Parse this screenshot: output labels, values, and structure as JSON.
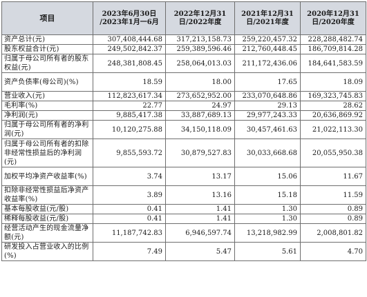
{
  "table": {
    "headers": [
      {
        "line1": "项目",
        "line2": ""
      },
      {
        "line1": "2023年6月30日",
        "line2": "/2023年1月一6月"
      },
      {
        "line1": "2022年12月31",
        "line2": "日/2022年度"
      },
      {
        "line1": "2021年12月31",
        "line2": "日/2021年度"
      },
      {
        "line1": "2020年12月31",
        "line2": "日/2020年度"
      }
    ],
    "rows": [
      {
        "label": "资产总计(元)",
        "values": [
          "307,408,444.68",
          "317,213,158.73",
          "259,220,457.32",
          "228,288,482.74"
        ]
      },
      {
        "label": "股东权益合计(元)",
        "values": [
          "249,502,842.37",
          "259,389,596.46",
          "212,760,448.45",
          "186,709,814.28"
        ]
      },
      {
        "label": "归属于母公司所有者的股东权益(元)",
        "values": [
          "248,381,808.45",
          "258,064,013.03",
          "211,172,436.06",
          "184,641,583.59"
        ]
      },
      {
        "label": "资产负债率(母公司)(%)",
        "values": [
          "18.59",
          "18.00",
          "17.65",
          "18.09"
        ]
      },
      {
        "label": "营业收入(元)",
        "values": [
          "112,823,617.34",
          "273,652,952.00",
          "233,070,648.86",
          "169,323,745.83"
        ]
      },
      {
        "label": "毛利率(%)",
        "values": [
          "22.77",
          "24.97",
          "29.13",
          "28.62"
        ]
      },
      {
        "label": "净利润(元)",
        "values": [
          "9,885,417.38",
          "33,887,689.13",
          "29,977,243.33",
          "20,636,869.92"
        ]
      },
      {
        "label": "归属于母公司所有者的净利润(元)",
        "values": [
          "10,120,275.88",
          "34,150,118.09",
          "30,457,461.63",
          "21,022,113.30"
        ]
      },
      {
        "label": "归属于母公司所有者的扣除非经常性损益后的净利润(元)",
        "values": [
          "9,855,593.72",
          "30,879,527.83",
          "30,033,668.68",
          "20,055,950.38"
        ]
      },
      {
        "label": "加权平均净资产收益率(%)",
        "values": [
          "3.74",
          "13.17",
          "15.06",
          "11.67"
        ]
      },
      {
        "label": "扣除非经常性损益后净资产收益率(%)",
        "values": [
          "3.89",
          "13.16",
          "15.18",
          "11.59"
        ]
      },
      {
        "label": "基本每股收益(元/股)",
        "values": [
          "0.41",
          "1.41",
          "1.30",
          "0.89"
        ]
      },
      {
        "label": "稀释每股收益(元/股)",
        "values": [
          "0.41",
          "1.41",
          "1.30",
          "0.89"
        ]
      },
      {
        "label": "经营活动产生的现金流量净额(元)",
        "values": [
          "11,187,742.83",
          "6,946,597.74",
          "13,218,982.99",
          "2,008,801.82"
        ]
      },
      {
        "label": "研发投入占营业收入的比例(%)",
        "values": [
          "7.49",
          "5.47",
          "5.61",
          "4.70"
        ]
      }
    ]
  },
  "colors": {
    "header_bg": "#d5d9e0",
    "border": "#6d6d6d",
    "text": "#1a1a1a"
  }
}
